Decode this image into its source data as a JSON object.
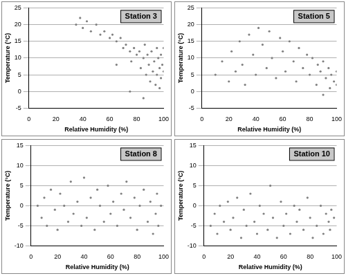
{
  "chart_data": [
    {
      "type": "scatter",
      "title": "Station 3",
      "x_label": "Relative Humidity (%)",
      "y_label": "Temperature (°C)",
      "color": "#808080",
      "marker": "circle",
      "grid": true,
      "xlim": [
        0,
        100
      ],
      "xticks": [
        0,
        20,
        40,
        60,
        80,
        100
      ],
      "ylim": [
        -5,
        25
      ],
      "yticks": [
        -5,
        0,
        5,
        10,
        15,
        20,
        25
      ],
      "x": [
        35,
        38,
        40,
        43,
        46,
        50,
        53,
        56,
        60,
        62,
        65,
        68,
        70,
        72,
        75,
        76,
        78,
        80,
        82,
        83,
        85,
        86,
        87,
        88,
        89,
        90,
        91,
        92,
        93,
        94,
        95,
        95,
        96,
        97,
        97,
        98,
        98,
        99,
        100,
        100,
        65,
        75,
        85
      ],
      "values": [
        20,
        22,
        19,
        21,
        18,
        20,
        17,
        18,
        16,
        17,
        15,
        16,
        13,
        14,
        12,
        9,
        13,
        11,
        12,
        7,
        10,
        14,
        5,
        11,
        8,
        3,
        12,
        6,
        9,
        2,
        13,
        5,
        10,
        7,
        1,
        11,
        4,
        8,
        6,
        13,
        8,
        0,
        -2
      ]
    },
    {
      "type": "scatter",
      "title": "Station 5",
      "x_label": "Relative Humidity (%)",
      "y_label": "Temperature (°C)",
      "color": "#808080",
      "marker": "circle",
      "grid": true,
      "xlim": [
        0,
        100
      ],
      "xticks": [
        0,
        20,
        40,
        60,
        80,
        100
      ],
      "ylim": [
        -5,
        25
      ],
      "yticks": [
        -5,
        0,
        5,
        10,
        15,
        20,
        25
      ],
      "x": [
        10,
        15,
        20,
        22,
        25,
        28,
        30,
        32,
        35,
        38,
        40,
        42,
        45,
        48,
        50,
        52,
        55,
        58,
        60,
        62,
        65,
        68,
        70,
        72,
        75,
        78,
        80,
        82,
        85,
        86,
        88,
        90,
        90,
        92,
        94,
        95,
        96,
        98,
        100,
        100
      ],
      "values": [
        5,
        9,
        3,
        12,
        6,
        15,
        8,
        2,
        17,
        11,
        5,
        19,
        14,
        7,
        18,
        10,
        4,
        16,
        12,
        6,
        15,
        9,
        3,
        13,
        7,
        11,
        5,
        10,
        2,
        8,
        6,
        -1,
        9,
        4,
        7,
        1,
        5,
        3,
        6,
        2
      ]
    },
    {
      "type": "scatter",
      "title": "Station 8",
      "x_label": "Relative Humidity (%)",
      "y_label": "Temperature (°C)",
      "color": "#808080",
      "marker": "circle",
      "grid": true,
      "xlim": [
        0,
        100
      ],
      "xticks": [
        0,
        20,
        40,
        60,
        80,
        100
      ],
      "ylim": [
        -10,
        15
      ],
      "yticks": [
        -10,
        -5,
        0,
        5,
        10,
        15
      ],
      "x": [
        5,
        8,
        10,
        12,
        15,
        18,
        20,
        22,
        25,
        28,
        30,
        32,
        35,
        38,
        40,
        42,
        45,
        48,
        50,
        52,
        55,
        58,
        60,
        62,
        65,
        68,
        70,
        72,
        75,
        78,
        80,
        82,
        85,
        88,
        90,
        92,
        94,
        95,
        96,
        98
      ],
      "values": [
        0,
        -3,
        2,
        -5,
        4,
        -1,
        -6,
        3,
        0,
        -4,
        6,
        -2,
        1,
        -5,
        7,
        -3,
        2,
        -6,
        4,
        0,
        -4,
        5,
        -2,
        1,
        -5,
        3,
        -1,
        6,
        -3,
        2,
        -6,
        0,
        4,
        -4,
        1,
        -7,
        -2,
        3,
        -5,
        0
      ]
    },
    {
      "type": "scatter",
      "title": "Station 10",
      "x_label": "Relative Humidity (%)",
      "y_label": "Temperature (°C)",
      "color": "#808080",
      "marker": "circle",
      "grid": true,
      "xlim": [
        0,
        100
      ],
      "xticks": [
        0,
        20,
        40,
        60,
        80,
        100
      ],
      "ylim": [
        -10,
        15
      ],
      "yticks": [
        -10,
        -5,
        0,
        5,
        10,
        15
      ],
      "x": [
        5,
        8,
        10,
        12,
        15,
        18,
        20,
        22,
        25,
        28,
        30,
        32,
        35,
        38,
        40,
        42,
        45,
        48,
        50,
        52,
        55,
        58,
        60,
        62,
        65,
        68,
        70,
        72,
        75,
        78,
        80,
        82,
        85,
        88,
        90,
        92,
        94,
        95,
        96,
        98
      ],
      "values": [
        -5,
        -2,
        -7,
        0,
        -4,
        1,
        -6,
        -3,
        2,
        -8,
        -1,
        -5,
        3,
        -4,
        -7,
        0,
        -2,
        -6,
        5,
        -3,
        -8,
        1,
        -5,
        -2,
        -7,
        0,
        -4,
        -1,
        -6,
        2,
        -3,
        -8,
        -5,
        0,
        -7,
        -2,
        -4,
        -6,
        -1,
        -3
      ]
    }
  ]
}
